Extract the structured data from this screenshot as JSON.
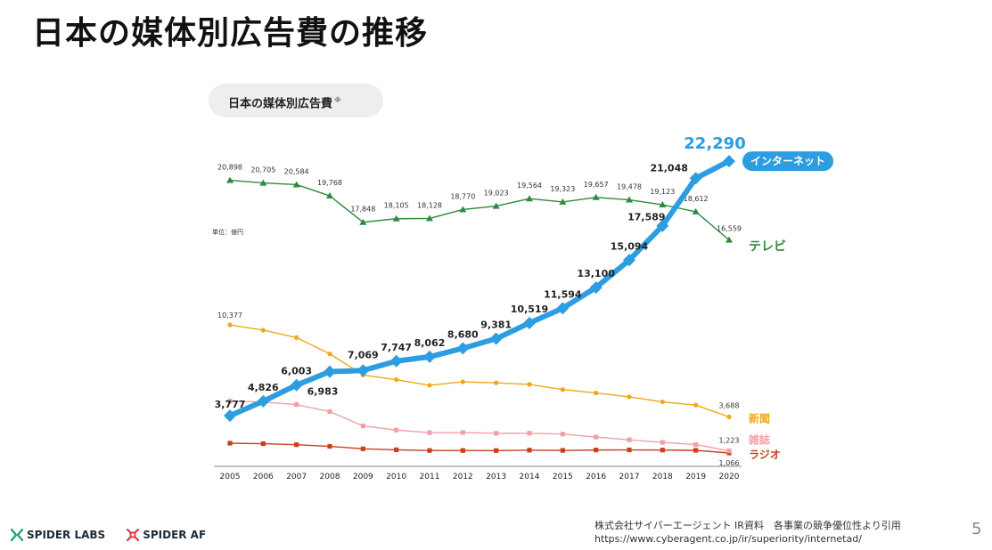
{
  "slide": {
    "title": "日本の媒体別広告費の推移",
    "page_number": "5",
    "credit_line1": "株式会社サイバーエージェント IR資料　各事業の競争優位性より引用",
    "credit_line2": "https://www.cyberagent.co.jp/ir/superiority/internetad/",
    "logos": [
      {
        "name": "SPIDER LABS",
        "icon": "spider-labs-icon",
        "color": "#1fa67a"
      },
      {
        "name": "SPIDER AF",
        "icon": "spider-af-icon",
        "color": "#e0393e"
      }
    ]
  },
  "chart_data": {
    "type": "line",
    "title": "日本の媒体別広告費",
    "title_mark": "※",
    "unit": "単位：億円",
    "categories": [
      "2005",
      "2006",
      "2007",
      "2008",
      "2009",
      "2010",
      "2011",
      "2012",
      "2013",
      "2014",
      "2015",
      "2016",
      "2017",
      "2018",
      "2019",
      "2020"
    ],
    "ylim": [
      0,
      23000
    ],
    "grid": false,
    "legend": "inline-right",
    "series": [
      {
        "name": "インターネット",
        "color": "#2b9de0",
        "marker": "diamond",
        "values": [
          3777,
          4826,
          6003,
          6983,
          7069,
          7747,
          8062,
          8680,
          9381,
          10519,
          11594,
          13100,
          15094,
          17589,
          21048,
          22290
        ],
        "labels": [
          "3,777",
          "4,826",
          "6,003",
          "6,983",
          "7,069",
          "7,747",
          "8,062",
          "8,680",
          "9,381",
          "10,519",
          "11,594",
          "13,100",
          "15,094",
          "17,589",
          "21,048",
          "22,290"
        ]
      },
      {
        "name": "テレビ",
        "color": "#2e8b3e",
        "marker": "triangle",
        "values": [
          20898,
          20705,
          20584,
          19768,
          17848,
          18105,
          18128,
          18770,
          19023,
          19564,
          19323,
          19657,
          19478,
          19123,
          18612,
          16559
        ],
        "labels": [
          "20,898",
          "20,705",
          "20,584",
          "19,768",
          "17,848",
          "18,105",
          "18,128",
          "18,770",
          "19,023",
          "19,564",
          "19,323",
          "19,657",
          "19,478",
          "19,123",
          "18,612",
          "16,559"
        ]
      },
      {
        "name": "新聞",
        "color": "#f0a818",
        "marker": "circle",
        "values": [
          10377,
          10000,
          9462,
          8276,
          6739,
          6396,
          5990,
          6242,
          6170,
          6057,
          5679,
          5431,
          5147,
          4784,
          4547,
          3688
        ],
        "labels": [
          "10,377",
          "",
          "",
          "",
          "",
          "",
          "",
          "",
          "",
          "",
          "",
          "",
          "",
          "",
          "",
          "3,688"
        ]
      },
      {
        "name": "雑誌",
        "color": "#f2a0a8",
        "marker": "square",
        "values": [
          4842,
          4777,
          4585,
          4078,
          3034,
          2733,
          2542,
          2551,
          2499,
          2500,
          2443,
          2223,
          2023,
          1841,
          1675,
          1223
        ],
        "labels": [
          "",
          "",
          "",
          "",
          "",
          "",
          "",
          "",
          "",
          "",
          "",
          "",
          "",
          "",
          "",
          "1,223"
        ]
      },
      {
        "name": "ラジオ",
        "color": "#c8401c",
        "marker": "square",
        "values": [
          1778,
          1744,
          1671,
          1549,
          1370,
          1299,
          1247,
          1246,
          1243,
          1272,
          1254,
          1285,
          1290,
          1278,
          1260,
          1066
        ],
        "labels": [
          "",
          "",
          "",
          "",
          "",
          "",
          "",
          "",
          "",
          "",
          "",
          "",
          "",
          "",
          "",
          "1,066"
        ]
      }
    ]
  }
}
